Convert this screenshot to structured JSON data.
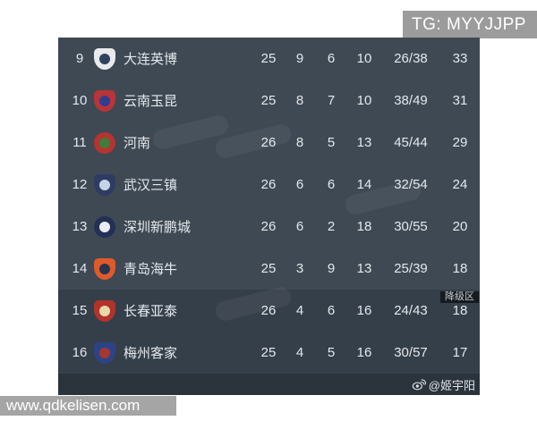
{
  "watermarks": {
    "tg": "TG: MYYJJPP",
    "site": "www.qdkelisen.com"
  },
  "credit": {
    "icon": "weibo-icon",
    "handle": "@姬宇阳"
  },
  "colors": {
    "row_bg": "#3e4954",
    "relegation_row_bg": "#353f4a",
    "credit_bar_bg": "#2b333d",
    "badge_bg": "#161b21",
    "badge_text": "#c7ccd1",
    "table_text": "#e4e8ec",
    "watermark_bg": "#9c9c9c",
    "site_watermark_bg": "#a5a5a5"
  },
  "table": {
    "columns": [
      "rank",
      "logo",
      "team",
      "played",
      "wins",
      "draws",
      "losses",
      "goals",
      "points"
    ],
    "relegation_badge_label": "降级区",
    "rows": [
      {
        "rank": "9",
        "team": "大连英博",
        "played": "25",
        "wins": "9",
        "draws": "6",
        "losses": "10",
        "goals": "26/38",
        "points": "33",
        "zone": "normal",
        "logo": {
          "shape": "shield",
          "colors": [
            "#e8eaec",
            "#30415e"
          ]
        }
      },
      {
        "rank": "10",
        "team": "云南玉昆",
        "played": "25",
        "wins": "8",
        "draws": "7",
        "losses": "10",
        "goals": "38/49",
        "points": "31",
        "zone": "normal",
        "logo": {
          "shape": "shield",
          "colors": [
            "#b93438",
            "#2e3f91"
          ]
        }
      },
      {
        "rank": "11",
        "team": "河南",
        "played": "26",
        "wins": "8",
        "draws": "5",
        "losses": "13",
        "goals": "45/44",
        "points": "29",
        "zone": "normal",
        "logo": {
          "shape": "circle",
          "colors": [
            "#b5342f",
            "#3f7d3a"
          ]
        }
      },
      {
        "rank": "12",
        "team": "武汉三镇",
        "played": "26",
        "wins": "6",
        "draws": "6",
        "losses": "14",
        "goals": "32/54",
        "points": "24",
        "zone": "normal",
        "logo": {
          "shape": "shield",
          "colors": [
            "#2e3c63",
            "#c6d2e6"
          ]
        }
      },
      {
        "rank": "13",
        "team": "深圳新鹏城",
        "played": "26",
        "wins": "6",
        "draws": "2",
        "losses": "18",
        "goals": "30/55",
        "points": "20",
        "zone": "normal",
        "logo": {
          "shape": "circle",
          "colors": [
            "#223055",
            "#e8ecf2"
          ]
        }
      },
      {
        "rank": "14",
        "team": "青岛海牛",
        "played": "25",
        "wins": "3",
        "draws": "9",
        "losses": "13",
        "goals": "25/39",
        "points": "18",
        "zone": "normal",
        "logo": {
          "shape": "shield",
          "colors": [
            "#de5a2a",
            "#263450"
          ]
        }
      },
      {
        "rank": "15",
        "team": "长春亚泰",
        "played": "26",
        "wins": "4",
        "draws": "6",
        "losses": "16",
        "goals": "24/43",
        "points": "18",
        "zone": "relegation",
        "badge": "降级区",
        "logo": {
          "shape": "shield",
          "colors": [
            "#b3322c",
            "#e8d9a8"
          ]
        }
      },
      {
        "rank": "16",
        "team": "梅州客家",
        "played": "25",
        "wins": "4",
        "draws": "5",
        "losses": "16",
        "goals": "30/57",
        "points": "17",
        "zone": "relegation",
        "logo": {
          "shape": "shield",
          "colors": [
            "#2d4387",
            "#a5372f"
          ]
        }
      }
    ]
  }
}
